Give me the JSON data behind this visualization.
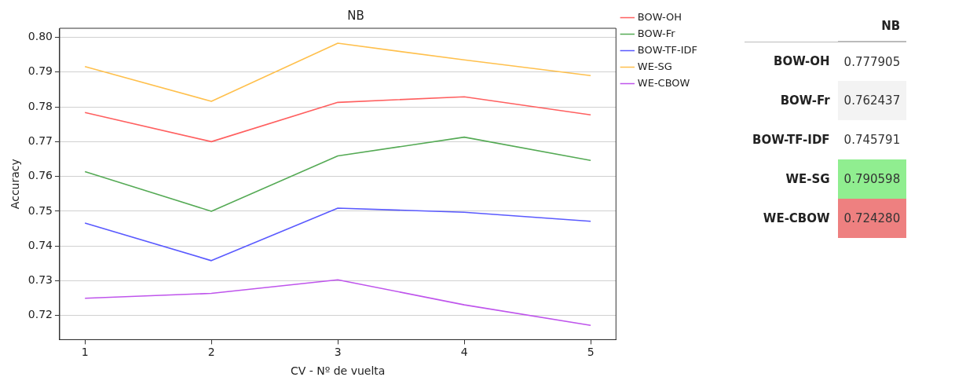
{
  "chart_data": [
    {
      "type": "line",
      "title": "NB",
      "xlabel": "CV - Nº de vuelta",
      "ylabel": "Accuracy",
      "x": [
        1,
        2,
        3,
        4,
        5
      ],
      "xlim": [
        0.8,
        5.2
      ],
      "xticks": [
        1,
        2,
        3,
        4,
        5
      ],
      "ylim": [
        0.7131,
        0.8026
      ],
      "yticks": [
        0.72,
        0.73,
        0.74,
        0.75,
        0.76,
        0.77,
        0.78,
        0.79,
        {
          "value": 0.8,
          "label": "0.80"
        }
      ],
      "grid": "y",
      "legend": "right",
      "marker": "none",
      "line_style": "solid",
      "series": [
        {
          "name": "BOW-OH",
          "color": "#ff6060",
          "values": [
            0.7784,
            0.77,
            0.7813,
            0.7829,
            0.7777
          ]
        },
        {
          "name": "BOW-Fr",
          "color": "#55aa55",
          "values": [
            0.7614,
            0.75,
            0.7659,
            0.7713,
            0.7646
          ]
        },
        {
          "name": "BOW-TF-IDF",
          "color": "#5a5aff",
          "values": [
            0.7466,
            0.7358,
            0.7509,
            0.7497,
            0.7471
          ]
        },
        {
          "name": "WE-SG",
          "color": "#ffc04d",
          "values": [
            0.7916,
            0.7816,
            0.7983,
            0.7935,
            0.789
          ]
        },
        {
          "name": "WE-CBOW",
          "color": "#bf55ec",
          "values": [
            0.725,
            0.7264,
            0.7303,
            0.7231,
            0.7172
          ]
        }
      ]
    },
    {
      "type": "other",
      "title": "NB",
      "categories": [
        "BOW-OH",
        "BOW-Fr",
        "BOW-TF-IDF",
        "WE-SG",
        "WE-CBOW"
      ],
      "value_labels": [
        "0.777905",
        "0.762437",
        "0.745791",
        "0.790598",
        "0.724280"
      ],
      "colors": [
        null,
        null,
        null,
        "#90ee90",
        "#ee8080"
      ]
    }
  ]
}
